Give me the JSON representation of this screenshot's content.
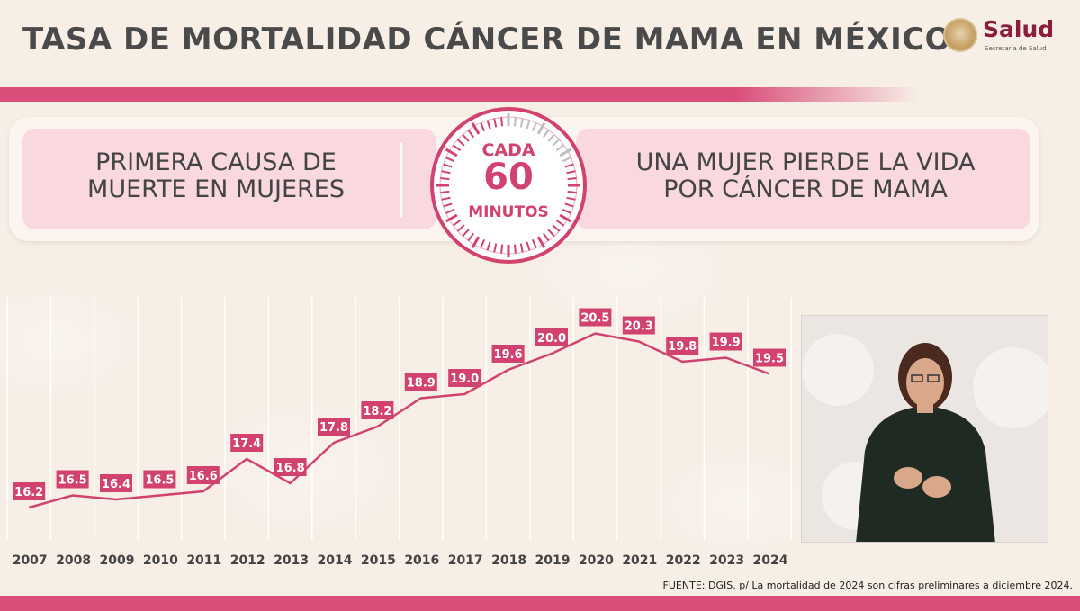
{
  "title": "TASA DE MORTALIDAD CÁNCER DE MAMA EN MÉXICO",
  "logo": {
    "name": "Salud",
    "subtitle": "Secretaría de Salud"
  },
  "banner": {
    "left_line1": "PRIMERA CAUSA DE",
    "left_line2": "MUERTE EN MUJERES",
    "clock_top": "CADA",
    "clock_number": "60",
    "clock_bottom": "MINUTOS",
    "right_line1": "UNA MUJER PIERDE LA VIDA",
    "right_line2": "POR CÁNCER DE MAMA"
  },
  "source": "FUENTE: DGIS. p/ La mortalidad de 2024 son cifras preliminares a diciembre 2024.",
  "colors": {
    "accent": "#d94d79",
    "label_box": "#d1436e",
    "line": "#d1436e",
    "banner": "#f9d8df"
  },
  "chart_data": {
    "type": "line",
    "categories": [
      "2007",
      "2008",
      "2009",
      "2010",
      "2011",
      "2012",
      "2013",
      "2014",
      "2015",
      "2016",
      "2017",
      "2018",
      "2019",
      "2020",
      "2021",
      "2022",
      "2023",
      "2024"
    ],
    "values": [
      16.2,
      16.5,
      16.4,
      16.5,
      16.6,
      17.4,
      16.8,
      17.8,
      18.2,
      18.9,
      19.0,
      19.6,
      20.0,
      20.5,
      20.3,
      19.8,
      19.9,
      19.5
    ],
    "value_labels": [
      "16.2",
      "16.5",
      "16.4",
      "16.5",
      "16.6",
      "17.4",
      "16.8",
      "17.8",
      "18.2",
      "18.9",
      "19.0",
      "19.6",
      "20.0",
      "20.5",
      "20.3",
      "19.8",
      "19.9",
      "19.5"
    ],
    "ylim": [
      15.4,
      21.4
    ],
    "grid": "vertical",
    "legend": "none"
  }
}
